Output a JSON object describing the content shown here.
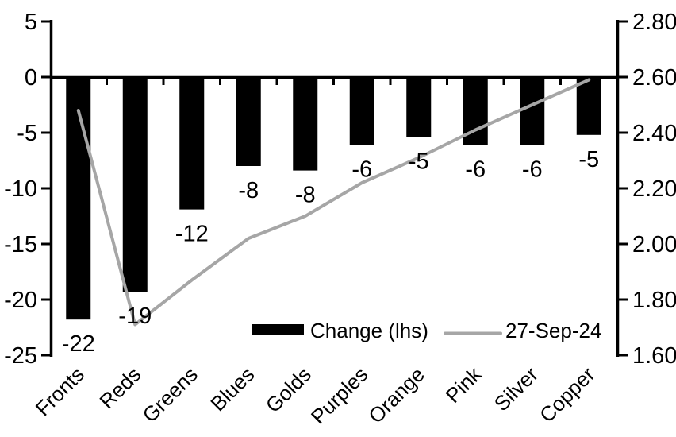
{
  "chart_data": {
    "type": "bar",
    "subtype": "combo-bar-line-dual-axis",
    "title": "",
    "categories": [
      "Fronts",
      "Reds",
      "Greens",
      "Blues",
      "Golds",
      "Purples",
      "Orange",
      "Pink",
      "Silver",
      "Copper"
    ],
    "series": [
      {
        "name": "Change (lhs)",
        "type": "bar",
        "axis": "left",
        "color": "#000000",
        "values": [
          -22,
          -19,
          -12,
          -8,
          -8,
          -6,
          -5,
          -6,
          -6,
          -5
        ],
        "values_exact": [
          -21.8,
          -19.3,
          -11.9,
          -8.0,
          -8.4,
          -6.1,
          -5.4,
          -6.1,
          -6.1,
          -5.2
        ],
        "data_labels": [
          "-22",
          "-19",
          "-12",
          "-8",
          "-8",
          "-6",
          "-5",
          "-6",
          "-6",
          "-5"
        ]
      },
      {
        "name": "27-Sep-24",
        "type": "line",
        "axis": "right",
        "color": "#a6a6a6",
        "values": [
          2.48,
          1.71,
          1.87,
          2.02,
          2.1,
          2.22,
          2.31,
          2.41,
          2.5,
          2.59
        ]
      }
    ],
    "left_axis": {
      "ticks": [
        5,
        0,
        -5,
        -10,
        -15,
        -20,
        -25
      ],
      "tick_labels": [
        "5",
        "0",
        "-5",
        "-10",
        "-15",
        "-20",
        "-25"
      ],
      "range": [
        -25,
        5
      ]
    },
    "right_axis": {
      "ticks": [
        2.8,
        2.6,
        2.4,
        2.2,
        2.0,
        1.8,
        1.6
      ],
      "tick_labels": [
        "2.80",
        "2.60",
        "2.40",
        "2.20",
        "2.00",
        "1.80",
        "1.60"
      ],
      "range": [
        1.6,
        2.8
      ]
    },
    "legend": {
      "position": "inside-bottom",
      "items": [
        {
          "label": "Change (lhs)",
          "swatch": "bar",
          "color": "#000000"
        },
        {
          "label": "27-Sep-24",
          "swatch": "line",
          "color": "#a6a6a6"
        }
      ]
    },
    "grid": false,
    "background": "#ffffff",
    "axis_color": "#000000"
  }
}
